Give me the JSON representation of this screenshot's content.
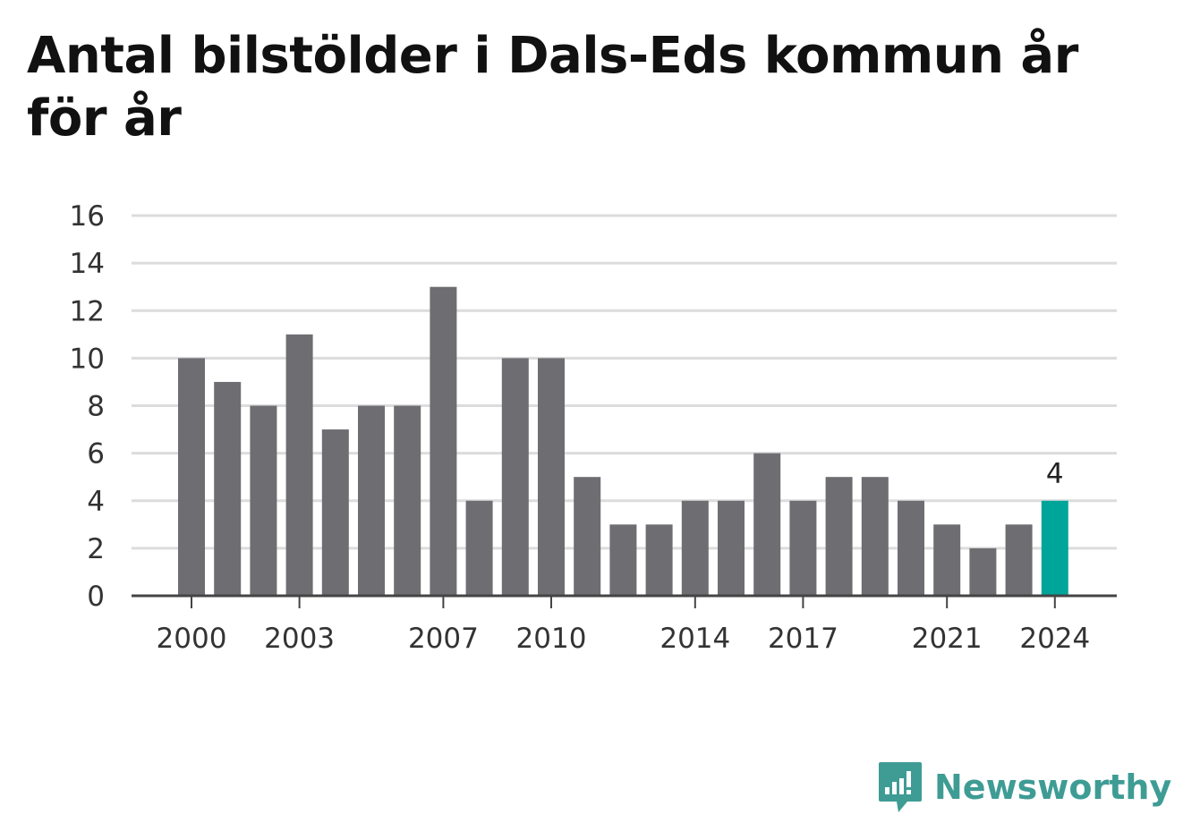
{
  "title": "Antal bilstölder i Dals-Eds kommun år för år",
  "brand": {
    "name": "Newsworthy",
    "icon": "newsworthy-logo-icon",
    "color": "#3e9c94"
  },
  "chart_data": {
    "type": "bar",
    "title": "Antal bilstölder i Dals-Eds kommun år för år",
    "xlabel": "",
    "ylabel": "",
    "categories": [
      "2000",
      "2001",
      "2002",
      "2003",
      "2004",
      "2005",
      "2006",
      "2007",
      "2008",
      "2009",
      "2010",
      "2011",
      "2012",
      "2013",
      "2014",
      "2015",
      "2016",
      "2017",
      "2018",
      "2019",
      "2020",
      "2021",
      "2022",
      "2023",
      "2024"
    ],
    "values": [
      10,
      9,
      8,
      11,
      7,
      8,
      8,
      13,
      4,
      10,
      10,
      5,
      3,
      3,
      4,
      4,
      6,
      4,
      5,
      5,
      4,
      3,
      2,
      3,
      4
    ],
    "ylim": [
      0,
      16
    ],
    "yticks": [
      "0",
      "2",
      "4",
      "6",
      "8",
      "10",
      "12",
      "14",
      "16"
    ],
    "xticks": [
      "2000",
      "2003",
      "2007",
      "2010",
      "2014",
      "2017",
      "2021",
      "2024"
    ],
    "highlight": {
      "category": "2024",
      "label": "4"
    },
    "bar_color": "#6e6d72",
    "highlight_color": "#00a599",
    "grid": true,
    "legend": "none"
  }
}
